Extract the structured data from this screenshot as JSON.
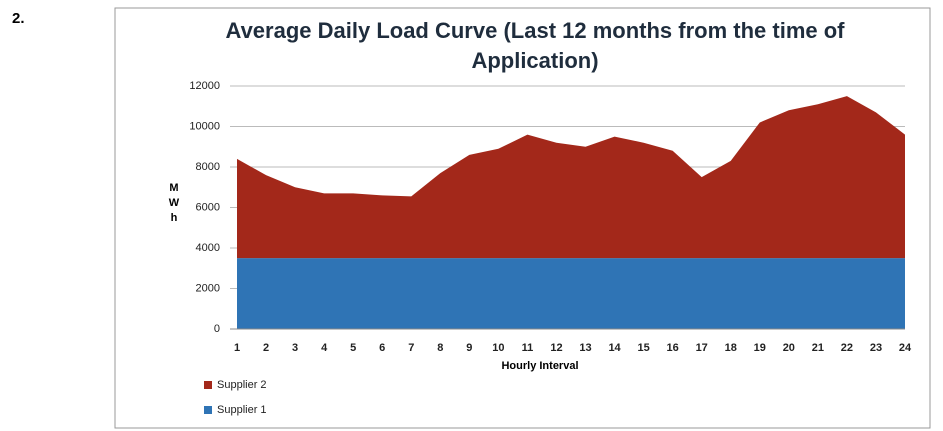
{
  "section_number": "2.",
  "chart_data": {
    "type": "stacked_area",
    "title": "Average Daily Load Curve (Last 12 months from the time of Application)",
    "y_label": "MWh",
    "x_label": "Hourly Interval",
    "categories": [
      "1",
      "2",
      "3",
      "4",
      "5",
      "6",
      "7",
      "8",
      "9",
      "10",
      "11",
      "12",
      "13",
      "14",
      "15",
      "16",
      "17",
      "18",
      "19",
      "20",
      "21",
      "22",
      "23",
      "24"
    ],
    "series": [
      {
        "name": "Supplier 1",
        "color": "#2f74b5",
        "values": [
          3500,
          3500,
          3500,
          3500,
          3500,
          3500,
          3500,
          3500,
          3500,
          3500,
          3500,
          3500,
          3500,
          3500,
          3500,
          3500,
          3500,
          3500,
          3500,
          3500,
          3500,
          3500,
          3500,
          3500
        ]
      },
      {
        "name": "Supplier 2",
        "color": "#a3281a",
        "values": [
          4900,
          4100,
          3500,
          3200,
          3200,
          3100,
          3050,
          4200,
          5100,
          5400,
          6100,
          5700,
          5500,
          6000,
          5700,
          5300,
          4000,
          4800,
          6700,
          7300,
          7600,
          8000,
          7200,
          6100
        ]
      }
    ],
    "ylim": [
      0,
      12000
    ],
    "yticks": [
      0,
      2000,
      4000,
      6000,
      8000,
      10000,
      12000
    ],
    "grid": true,
    "legend": "bottom-left"
  }
}
